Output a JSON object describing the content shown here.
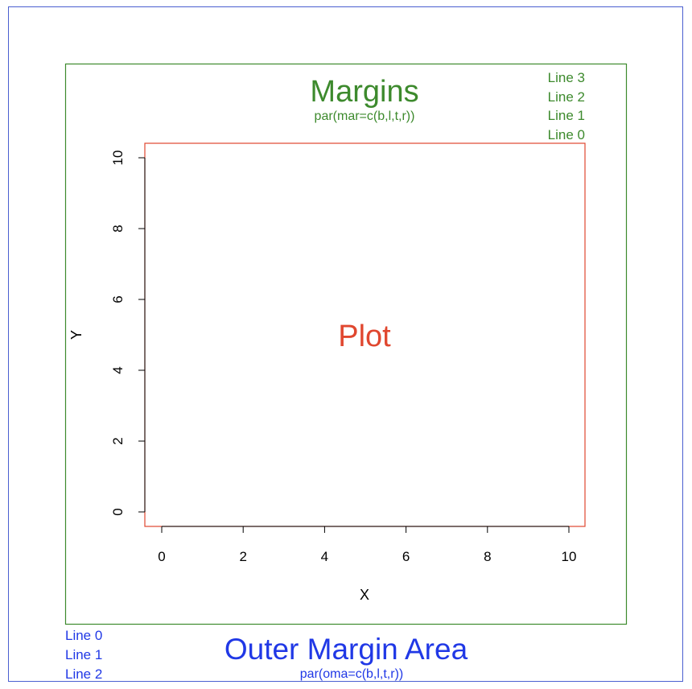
{
  "colors": {
    "outer": "#2038e6",
    "outer_border": "#4a5fd0",
    "margin": "#3d8a2d",
    "plot": "#e0472f",
    "axis": "#000000"
  },
  "outer_margin": {
    "title": "Outer Margin Area",
    "subtitle": "par(oma=c(b,l,t,r))",
    "lines": [
      "Line 0",
      "Line 1",
      "Line 2"
    ]
  },
  "margins": {
    "title": "Margins",
    "subtitle": "par(mar=c(b,l,t,r))",
    "lines": [
      "Line 3",
      "Line 2",
      "Line 1",
      "Line 0"
    ]
  },
  "plot": {
    "label": "Plot"
  },
  "chart_data": {
    "type": "scatter",
    "title": "",
    "xlabel": "X",
    "ylabel": "Y",
    "xlim": [
      0,
      10
    ],
    "ylim": [
      0,
      10
    ],
    "x_ticks": [
      0,
      2,
      4,
      6,
      8,
      10
    ],
    "y_ticks": [
      0,
      2,
      4,
      6,
      8,
      10
    ],
    "x_tick_labels": [
      "0",
      "2",
      "4",
      "6",
      "8",
      "10"
    ],
    "y_tick_labels": [
      "0",
      "2",
      "4",
      "6",
      "8",
      "10"
    ],
    "series": [],
    "grid": false
  }
}
